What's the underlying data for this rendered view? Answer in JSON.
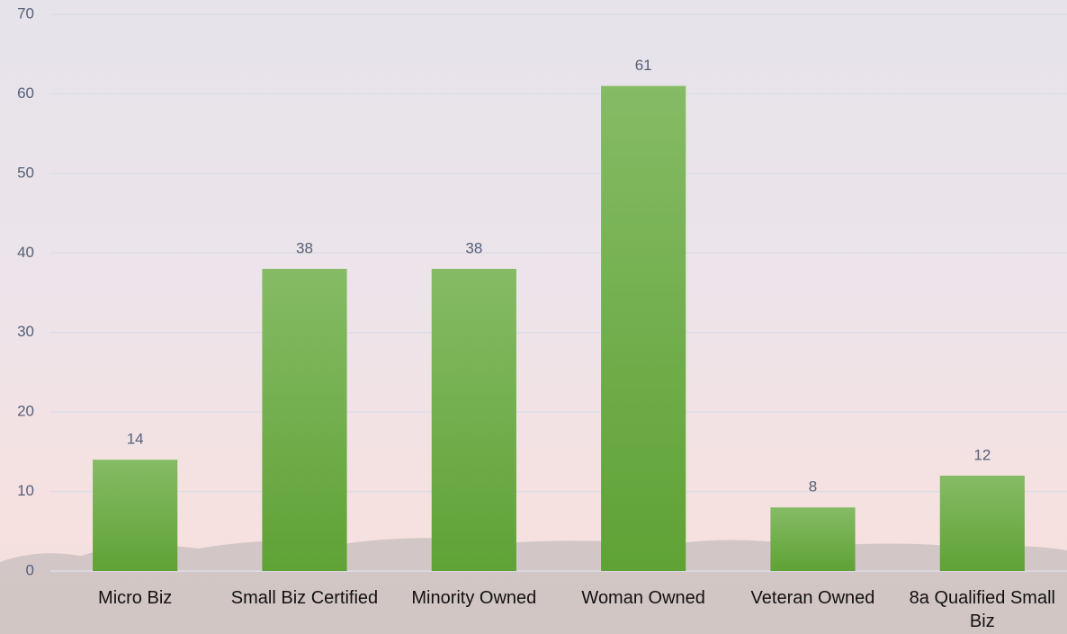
{
  "chart_data": {
    "type": "bar",
    "categories": [
      "Micro Biz",
      "Small Biz Certified",
      "Minority Owned",
      "Woman Owned",
      "Veteran Owned",
      "8a Qualified Small Biz"
    ],
    "values": [
      14,
      38,
      38,
      61,
      8,
      12
    ],
    "color": "#6fae47",
    "ylim": [
      0,
      70
    ],
    "yticks": [
      0,
      10,
      20,
      30,
      40,
      50,
      60,
      70
    ],
    "grid": true
  }
}
